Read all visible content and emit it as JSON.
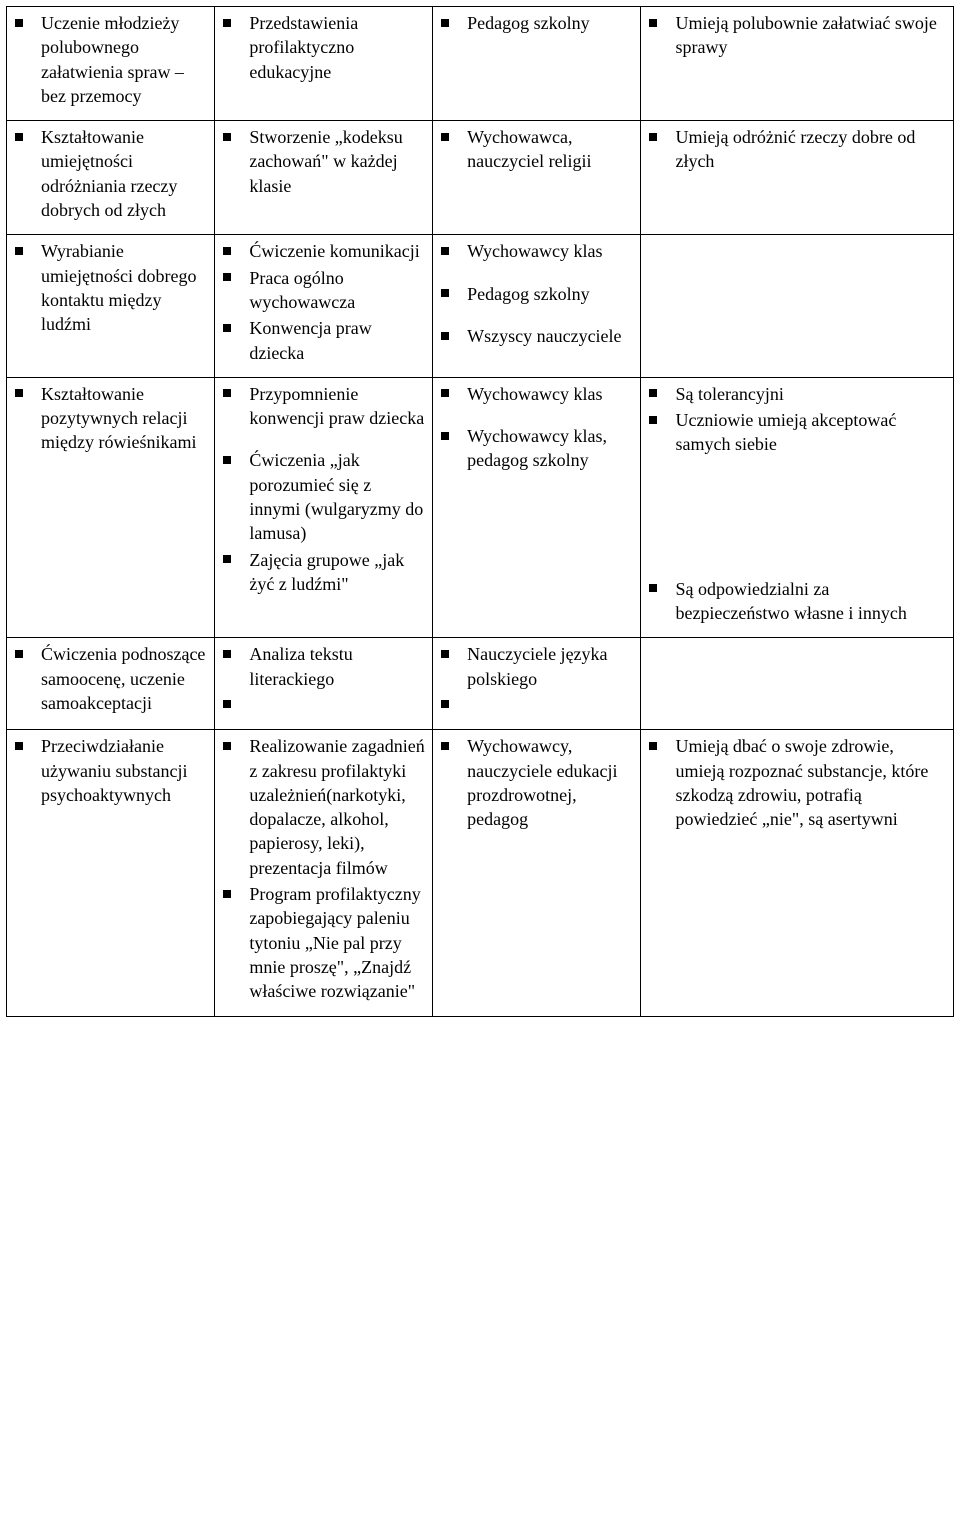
{
  "table": {
    "columns": [
      {
        "width_pct": 22
      },
      {
        "width_pct": 23
      },
      {
        "width_pct": 22
      },
      {
        "width_pct": 33
      }
    ],
    "font_family": "Times New Roman",
    "font_size_pt": 14,
    "text_color": "#000000",
    "background_color": "#ffffff",
    "border_color": "#000000",
    "bullet_style": "filled-square",
    "rows": [
      {
        "cells": [
          {
            "items": [
              "Uczenie młodzieży polubownego załatwienia spraw – bez przemocy"
            ]
          },
          {
            "items": [
              "Przedstawienia profilaktyczno edukacyjne"
            ]
          },
          {
            "items": [
              "Pedagog szkolny"
            ]
          },
          {
            "items": [
              "Umieją polubownie załatwiać swoje sprawy"
            ]
          }
        ]
      },
      {
        "cells": [
          {
            "items": [
              "Kształtowanie umiejętności odróżniania rzeczy dobrych od złych"
            ]
          },
          {
            "items": [
              "Stworzenie „kodeksu zachowań\" w każdej klasie"
            ]
          },
          {
            "items": [
              "Wychowawca, nauczyciel religii"
            ]
          },
          {
            "items": [
              "Umieją odróżnić rzeczy dobre od złych"
            ]
          }
        ]
      },
      {
        "cells": [
          {
            "items": [
              "Wyrabianie umiejętności dobrego kontaktu między ludźmi"
            ]
          },
          {
            "items": [
              "Ćwiczenie komunikacji",
              "Praca ogólno wychowawcza",
              "Konwencja praw dziecka"
            ]
          },
          {
            "items": [
              "Wychowawcy klas",
              "Pedagog szkolny",
              "Wszyscy nauczyciele"
            ],
            "spacing": "gap"
          },
          {
            "items": []
          }
        ]
      },
      {
        "cells": [
          {
            "items": [
              "Kształtowanie pozytywnych relacji między rówieśnikami"
            ]
          },
          {
            "items": [
              "Przypomnienie konwencji praw dziecka",
              "Ćwiczenia „jak porozumieć się z innymi (wulgaryzmy do lamusa)",
              "Zajęcia grupowe „jak żyć z ludźmi\""
            ],
            "spacing": "gap_after_first"
          },
          {
            "items": [
              "Wychowawcy klas",
              "Wychowawcy klas, pedagog szkolny"
            ],
            "spacing": "gap"
          },
          {
            "items": [
              "Są tolerancyjni",
              "Uczniowie umieją akceptować samych siebie",
              "Są odpowiedzialni za bezpieczeństwo własne i innych"
            ],
            "spacing": "big_gap_before_last"
          }
        ]
      },
      {
        "cells": [
          {
            "items": [
              "Ćwiczenia podnoszące samoocenę, uczenie samoakceptacji"
            ]
          },
          {
            "items": [
              "Analiza tekstu literackiego",
              ""
            ],
            "has_empty": true
          },
          {
            "items": [
              "Nauczyciele języka polskiego",
              ""
            ],
            "has_empty": true
          },
          {
            "items": []
          }
        ]
      },
      {
        "cells": [
          {
            "items": [
              "Przeciwdziałanie używaniu substancji psychoaktywnych"
            ]
          },
          {
            "items": [
              "Realizowanie zagadnień z zakresu profilaktyki uzależnień(narkotyki, dopalacze, alkohol, papierosy, leki), prezentacja filmów",
              "Program profilaktyczny zapobiegający paleniu tytoniu „Nie pal przy mnie proszę\", „Znajdź właściwe rozwiązanie\""
            ]
          },
          {
            "items": [
              "Wychowawcy, nauczyciele edukacji prozdrowotnej, pedagog"
            ]
          },
          {
            "items": [
              "Umieją dbać o swoje zdrowie, umieją rozpoznać substancje, które szkodzą zdrowiu, potrafią powiedzieć „nie\", są asertywni"
            ]
          }
        ]
      }
    ]
  }
}
